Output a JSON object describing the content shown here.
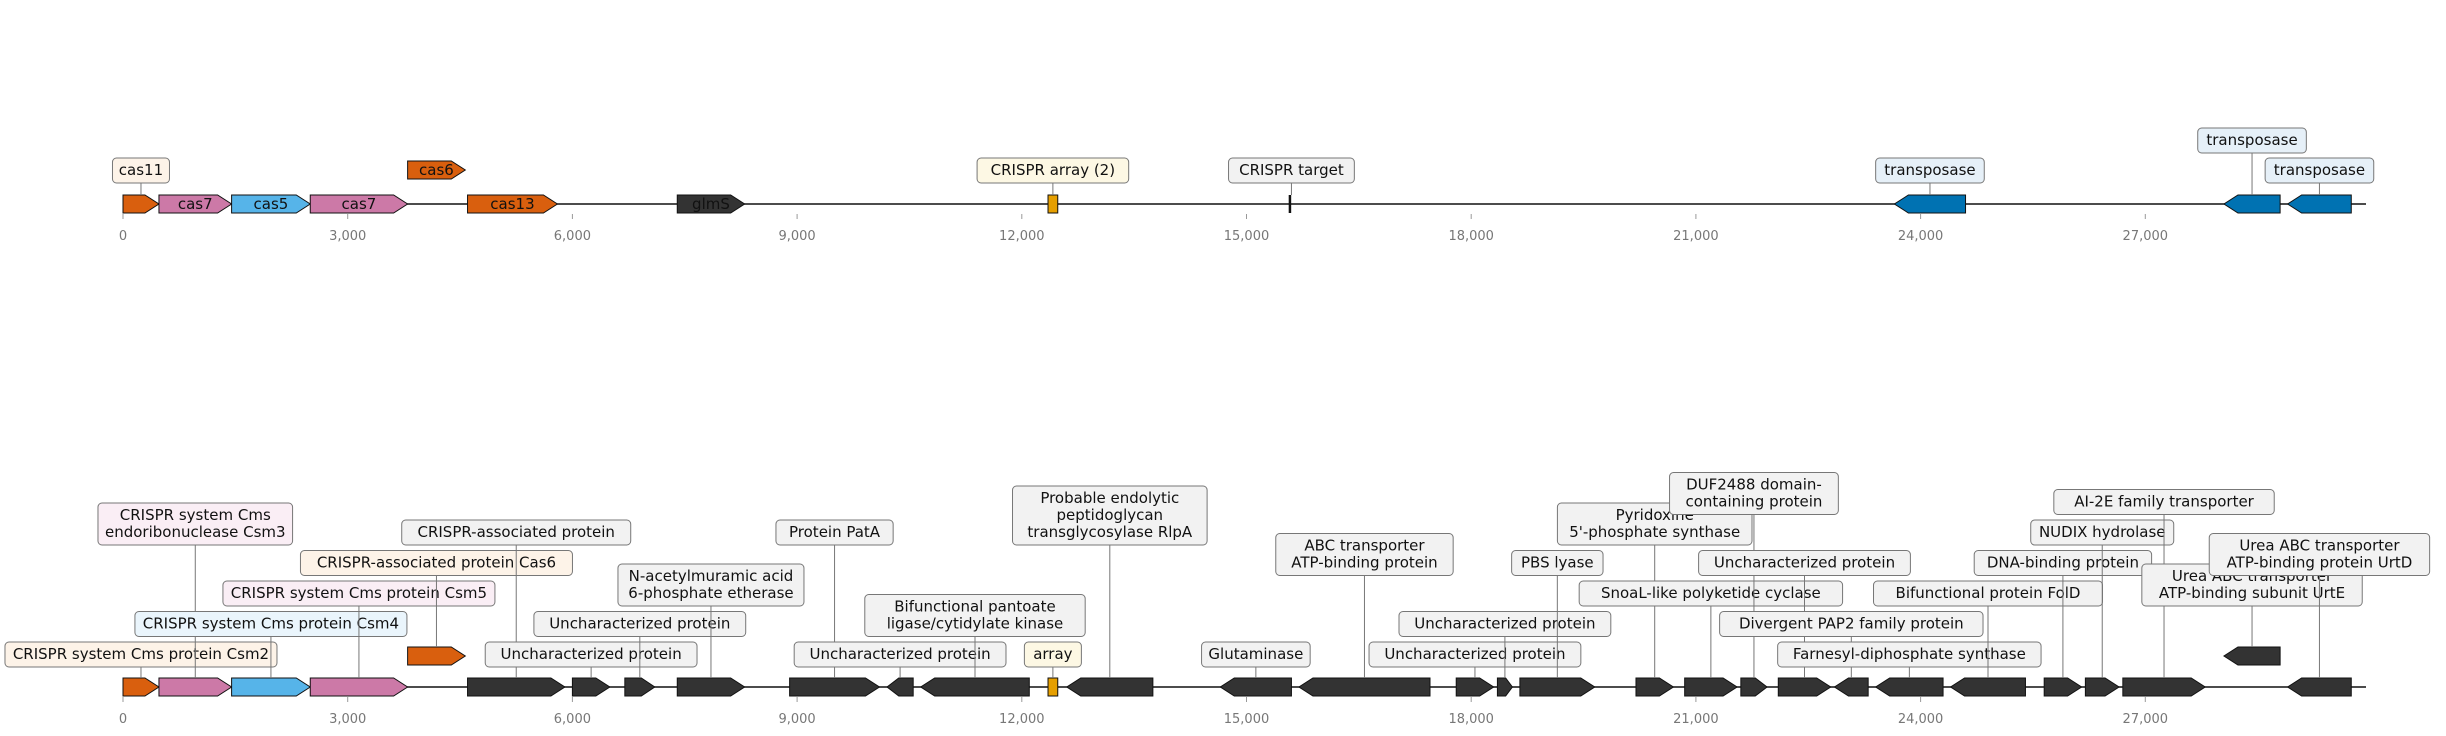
{
  "colors": {
    "cas11": "#d95f0e",
    "cas7": "#cc79a7",
    "cas5": "#56b4e9",
    "cas6": "#d95f0e",
    "cas13": "#d95f0e",
    "glmS": "#333333",
    "crispr": "#e69f00",
    "transposase": "#0072b2",
    "other": "#333333",
    "box_orange": "#fdf3e8",
    "box_pink": "#faeef5",
    "box_blue": "#eaf5fc",
    "box_yellow": "#fdf8e4",
    "box_gray": "#f2f2f2",
    "box_tp": "#e6f0f8"
  },
  "chart_data": [
    {
      "type": "gene_map",
      "title": "",
      "xlim": [
        0,
        30000
      ],
      "ticks": [
        "0",
        "3,000",
        "6,000",
        "9,000",
        "12,000",
        "15,000",
        "18,000",
        "21,000",
        "24,000",
        "27,000"
      ],
      "tick_values": [
        0,
        3000,
        6000,
        9000,
        12000,
        15000,
        18000,
        21000,
        24000,
        27000
      ],
      "features": [
        {
          "name": "cas11",
          "start": 0,
          "end": 480,
          "strand": 1,
          "row": 0,
          "color": "cas11",
          "label": "cas11",
          "label_pos": "above",
          "box": "box_orange"
        },
        {
          "name": "cas7",
          "start": 480,
          "end": 1450,
          "strand": 1,
          "row": 0,
          "color": "cas7",
          "label": "cas7",
          "label_pos": "inside"
        },
        {
          "name": "cas5",
          "start": 1450,
          "end": 2500,
          "strand": 1,
          "row": 0,
          "color": "cas5",
          "label": "cas5",
          "label_pos": "inside"
        },
        {
          "name": "cas7",
          "start": 2500,
          "end": 3800,
          "strand": 1,
          "row": 0,
          "color": "cas7",
          "label": "cas7",
          "label_pos": "inside"
        },
        {
          "name": "cas6",
          "start": 3800,
          "end": 4570,
          "strand": 1,
          "row": 1,
          "color": "cas6",
          "label": "cas6",
          "label_pos": "inside"
        },
        {
          "name": "cas13",
          "start": 4600,
          "end": 5800,
          "strand": 1,
          "row": 0,
          "color": "cas13",
          "label": "cas13",
          "label_pos": "inside"
        },
        {
          "name": "glmS",
          "start": 7400,
          "end": 8300,
          "strand": 1,
          "row": 0,
          "color": "glmS",
          "label": "glmS",
          "label_pos": "inside"
        },
        {
          "name": "crispr",
          "start": 12350,
          "end": 12480,
          "strand": 0,
          "row": 0,
          "color": "crispr",
          "label": "CRISPR array (2)",
          "label_pos": "above",
          "box": "box_yellow"
        },
        {
          "name": "target",
          "start": 15580,
          "end": 15620,
          "strand": 0,
          "row": 0,
          "color": "other",
          "label": "CRISPR target",
          "label_pos": "above",
          "box": "box_gray"
        },
        {
          "name": "transposase",
          "start": 23650,
          "end": 24600,
          "strand": -1,
          "row": 0,
          "color": "transposase",
          "label": "transposase",
          "label_pos": "above",
          "box": "box_tp"
        },
        {
          "name": "transposase",
          "start": 28050,
          "end": 28800,
          "strand": -1,
          "row": 0,
          "color": "transposase",
          "label": "transposase",
          "label_pos": "above",
          "box": "box_tp",
          "lv": 1
        },
        {
          "name": "transposase",
          "start": 28900,
          "end": 29750,
          "strand": -1,
          "row": 0,
          "color": "transposase",
          "label": "transposase",
          "label_pos": "above",
          "box": "box_tp"
        }
      ]
    },
    {
      "type": "gene_map",
      "title": "",
      "xlim": [
        0,
        30000
      ],
      "ticks": [
        "0",
        "3,000",
        "6,000",
        "9,000",
        "12,000",
        "15,000",
        "18,000",
        "21,000",
        "24,000",
        "27,000"
      ],
      "tick_values": [
        0,
        3000,
        6000,
        9000,
        12000,
        15000,
        18000,
        21000,
        24000,
        27000
      ],
      "features": [
        {
          "start": 0,
          "end": 480,
          "strand": 1,
          "row": 0,
          "color": "cas11",
          "label": "CRISPR system Cms protein Csm2",
          "box": "box_orange",
          "lv": 0
        },
        {
          "start": 480,
          "end": 1450,
          "strand": 1,
          "row": 0,
          "color": "cas7",
          "label": "CRISPR system Cms\nendoribonuclease Csm3",
          "box": "box_pink",
          "lv": 4
        },
        {
          "start": 1450,
          "end": 2500,
          "strand": 1,
          "row": 0,
          "color": "cas5",
          "label": "CRISPR system Cms protein Csm4",
          "box": "box_blue",
          "lv": 1
        },
        {
          "start": 2500,
          "end": 3800,
          "strand": 1,
          "row": 0,
          "color": "cas7",
          "label": "CRISPR system Cms protein Csm5",
          "box": "box_pink",
          "lv": 2
        },
        {
          "start": 3800,
          "end": 4570,
          "strand": 1,
          "row": 1,
          "color": "cas6",
          "label": "CRISPR-associated protein Cas6",
          "box": "box_orange",
          "lv": 3
        },
        {
          "start": 4600,
          "end": 5900,
          "strand": 1,
          "row": 0,
          "color": "other",
          "label": "CRISPR-associated protein",
          "box": "box_gray",
          "lv": 4
        },
        {
          "start": 6000,
          "end": 6500,
          "strand": 1,
          "row": 0,
          "color": "other",
          "label": "Uncharacterized protein",
          "box": "box_gray",
          "lv": 0
        },
        {
          "start": 6700,
          "end": 7100,
          "strand": 1,
          "row": 0,
          "color": "other",
          "label": "Uncharacterized protein",
          "box": "box_gray",
          "lv": 1
        },
        {
          "start": 7400,
          "end": 8300,
          "strand": 1,
          "row": 0,
          "color": "other",
          "label": "N-acetylmuramic acid\n6-phosphate etherase",
          "box": "box_gray",
          "lv": 2
        },
        {
          "start": 8900,
          "end": 10100,
          "strand": 1,
          "row": 0,
          "color": "other",
          "label": "Protein PatA",
          "box": "box_gray",
          "lv": 4
        },
        {
          "start": 10200,
          "end": 10550,
          "strand": -1,
          "row": 0,
          "color": "other",
          "label": "Uncharacterized protein",
          "box": "box_gray",
          "lv": 0
        },
        {
          "start": 10650,
          "end": 12100,
          "strand": -1,
          "row": 0,
          "color": "other",
          "label": "Bifunctional pantoate\nligase/cytidylate kinase",
          "box": "box_gray",
          "lv": 1
        },
        {
          "start": 12350,
          "end": 12480,
          "strand": 0,
          "row": 0,
          "color": "crispr",
          "label": "array",
          "box": "box_yellow",
          "lv": 0
        },
        {
          "start": 12600,
          "end": 13750,
          "strand": -1,
          "row": 0,
          "color": "other",
          "label": "Probable endolytic\npeptidoglycan\ntransglycosylase RlpA",
          "box": "box_gray",
          "lv": 4
        },
        {
          "start": 14650,
          "end": 15600,
          "strand": -1,
          "row": 0,
          "color": "other",
          "label": "Glutaminase",
          "box": "box_gray",
          "lv": 0
        },
        {
          "start": 15700,
          "end": 17450,
          "strand": -1,
          "row": 0,
          "color": "other",
          "label": "ABC transporter\nATP-binding protein",
          "box": "box_gray",
          "lv": 3
        },
        {
          "start": 17800,
          "end": 18300,
          "strand": 1,
          "row": 0,
          "color": "other",
          "label": "Uncharacterized protein",
          "box": "box_gray",
          "lv": 0
        },
        {
          "start": 18350,
          "end": 18550,
          "strand": 1,
          "row": 0,
          "color": "other",
          "label": "Uncharacterized protein",
          "box": "box_gray",
          "lv": 1
        },
        {
          "start": 18650,
          "end": 19650,
          "strand": 1,
          "row": 0,
          "color": "other",
          "label": "PBS lyase",
          "box": "box_gray",
          "lv": 3
        },
        {
          "start": 20200,
          "end": 20700,
          "strand": 1,
          "row": 0,
          "color": "other",
          "label": "Pyridoxine\n5'-phosphate synthase",
          "box": "box_gray",
          "lv": 4
        },
        {
          "start": 20850,
          "end": 21550,
          "strand": 1,
          "row": 0,
          "color": "other",
          "label": "SnoaL-like polyketide cyclase",
          "box": "box_gray",
          "lv": 2
        },
        {
          "start": 21600,
          "end": 21950,
          "strand": 1,
          "row": 0,
          "color": "other",
          "label": "DUF2488 domain-\ncontaining protein",
          "box": "box_gray",
          "lv": 5
        },
        {
          "start": 22100,
          "end": 22800,
          "strand": 1,
          "row": 0,
          "color": "other",
          "label": "Uncharacterized protein",
          "box": "box_gray",
          "lv": 3
        },
        {
          "start": 22850,
          "end": 23300,
          "strand": -1,
          "row": 0,
          "color": "other",
          "label": "Divergent PAP2 family protein",
          "box": "box_gray",
          "lv": 1
        },
        {
          "start": 23400,
          "end": 24300,
          "strand": -1,
          "row": 0,
          "color": "other",
          "label": "Farnesyl-diphosphate synthase",
          "box": "box_gray",
          "lv": 0
        },
        {
          "start": 24400,
          "end": 25400,
          "strand": -1,
          "row": 0,
          "color": "other",
          "label": "Bifunctional protein FolD",
          "box": "box_gray",
          "lv": 2
        },
        {
          "start": 25650,
          "end": 26150,
          "strand": 1,
          "row": 0,
          "color": "other",
          "label": "DNA-binding protein",
          "box": "box_gray",
          "lv": 3
        },
        {
          "start": 26200,
          "end": 26650,
          "strand": 1,
          "row": 0,
          "color": "other",
          "label": "NUDIX hydrolase",
          "box": "box_gray",
          "lv": 4
        },
        {
          "start": 26700,
          "end": 27800,
          "strand": 1,
          "row": 0,
          "color": "other",
          "label": "AI-2E family transporter",
          "box": "box_gray",
          "lv": 5
        },
        {
          "start": 28050,
          "end": 28800,
          "strand": -1,
          "row": 1,
          "color": "other",
          "label": "Urea ABC transporter\nATP-binding subunit UrtE",
          "box": "box_gray",
          "lv": 2
        },
        {
          "start": 28900,
          "end": 29750,
          "strand": -1,
          "row": 0,
          "color": "other",
          "label": "Urea ABC transporter\nATP-binding protein UrtD",
          "box": "box_gray",
          "lv": 3
        }
      ]
    }
  ]
}
